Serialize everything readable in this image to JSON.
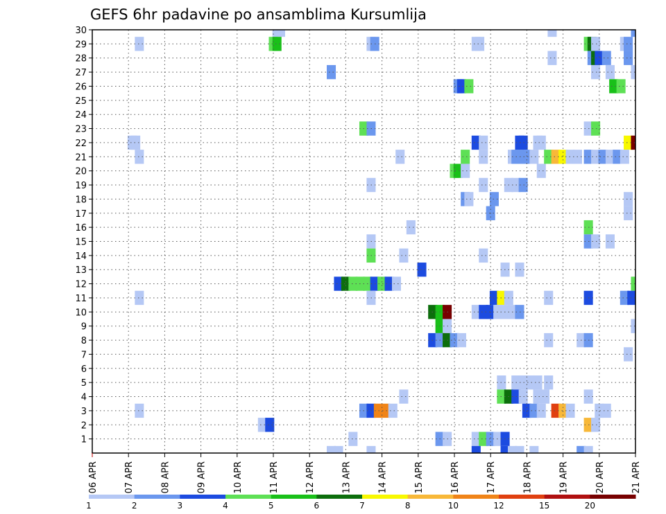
{
  "chart_data": {
    "type": "heatmap",
    "title": "GEFS 6hr padavine po ansamblima Kursumlija",
    "xlabel": "",
    "ylabel": "",
    "x_tick_labels": [
      "06 APR",
      "07 APR",
      "08 APR",
      "09 APR",
      "10 APR",
      "11 APR",
      "12 APR",
      "13 APR",
      "14 APR",
      "15 APR",
      "16 APR",
      "17 APR",
      "18 APR",
      "19 APR",
      "20 APR",
      "21 APR"
    ],
    "x_range_days": [
      0,
      15
    ],
    "x_step": "6hr",
    "y_tick_labels": [
      "1",
      "2",
      "3",
      "4",
      "5",
      "6",
      "7",
      "8",
      "9",
      "10",
      "11",
      "12",
      "13",
      "14",
      "15",
      "16",
      "17",
      "18",
      "19",
      "20",
      "21",
      "22",
      "23",
      "24",
      "25",
      "26",
      "27",
      "28",
      "29",
      "30"
    ],
    "y_range": [
      0,
      30
    ],
    "grid": true,
    "legend_position": "bottom",
    "color_scale": {
      "labels": [
        "1",
        "2",
        "3",
        "4",
        "5",
        "6",
        "7",
        "8",
        "10",
        "12",
        "15",
        "20"
      ],
      "colors": [
        "#b5c8f5",
        "#6b97ee",
        "#1c4be0",
        "#5ee055",
        "#19c019",
        "#0c6e0c",
        "#f8f800",
        "#f8b838",
        "#f08418",
        "#e04010",
        "#b01010",
        "#780000"
      ]
    },
    "cells": [
      {
        "member": 30,
        "t": [
          [
            5.1,
            "#b5c8f5"
          ],
          [
            5.2,
            "#b5c8f5"
          ],
          [
            12.7,
            "#b5c8f5"
          ],
          [
            15,
            "#6b97ee"
          ]
        ]
      },
      {
        "member": 29,
        "t": [
          [
            1.3,
            "#b5c8f5"
          ],
          [
            5,
            "#5ee055"
          ],
          [
            5.1,
            "#19c019"
          ],
          [
            7.7,
            "#b5c8f5"
          ],
          [
            7.8,
            "#6b97ee"
          ],
          [
            10.6,
            "#b5c8f5"
          ],
          [
            10.7,
            "#b5c8f5"
          ],
          [
            13.7,
            "#5ee055"
          ],
          [
            13.8,
            "#0c6e0c"
          ],
          [
            13.9,
            "#b5c8f5"
          ],
          [
            14.7,
            "#b5c8f5"
          ],
          [
            14.8,
            "#6b97ee"
          ]
        ]
      },
      {
        "member": 28,
        "t": [
          [
            12.7,
            "#b5c8f5"
          ],
          [
            13.8,
            "#6b97ee"
          ],
          [
            13.9,
            "#0c6e0c"
          ],
          [
            14,
            "#1c4be0"
          ],
          [
            14.2,
            "#6b97ee"
          ],
          [
            14.8,
            "#6b97ee"
          ]
        ]
      },
      {
        "member": 27,
        "t": [
          [
            6.6,
            "#6b97ee"
          ],
          [
            13.9,
            "#b5c8f5"
          ],
          [
            14.3,
            "#b5c8f5"
          ],
          [
            15,
            "#b5c8f5"
          ]
        ]
      },
      {
        "member": 26,
        "t": [
          [
            10.1,
            "#6b97ee"
          ],
          [
            10.2,
            "#1c4be0"
          ],
          [
            10.4,
            "#5ee055"
          ],
          [
            14.4,
            "#19c019"
          ],
          [
            14.6,
            "#5ee055"
          ]
        ]
      },
      {
        "member": 23,
        "t": [
          [
            7.5,
            "#5ee055"
          ],
          [
            7.7,
            "#6b97ee"
          ],
          [
            13.7,
            "#b5c8f5"
          ],
          [
            13.9,
            "#5ee055"
          ]
        ]
      },
      {
        "member": 22,
        "t": [
          [
            1.1,
            "#b5c8f5"
          ],
          [
            1.2,
            "#b5c8f5"
          ],
          [
            10.6,
            "#1c4be0"
          ],
          [
            10.8,
            "#b5c8f5"
          ],
          [
            11.8,
            "#1c4be0"
          ],
          [
            11.9,
            "#1c4be0"
          ],
          [
            12.3,
            "#b5c8f5"
          ],
          [
            12.4,
            "#b5c8f5"
          ],
          [
            14.8,
            "#f8f800"
          ],
          [
            15,
            "#780000"
          ]
        ]
      },
      {
        "member": 21,
        "t": [
          [
            1.3,
            "#b5c8f5"
          ],
          [
            8.5,
            "#b5c8f5"
          ],
          [
            10.3,
            "#5ee055"
          ],
          [
            10.8,
            "#b5c8f5"
          ],
          [
            11.6,
            "#b5c8f5"
          ],
          [
            11.7,
            "#6b97ee"
          ],
          [
            11.8,
            "#6b97ee"
          ],
          [
            12.0,
            "#6b97ee"
          ],
          [
            12.2,
            "#b5c8f5"
          ],
          [
            12.6,
            "#5ee055"
          ],
          [
            12.8,
            "#f8b838"
          ],
          [
            13.0,
            "#f8f800"
          ],
          [
            13.2,
            "#b5c8f5"
          ],
          [
            13.4,
            "#b5c8f5"
          ],
          [
            13.7,
            "#6b97ee"
          ],
          [
            13.9,
            "#b5c8f5"
          ],
          [
            14.1,
            "#6b97ee"
          ],
          [
            14.3,
            "#b5c8f5"
          ],
          [
            14.5,
            "#6b97ee"
          ],
          [
            14.7,
            "#b5c8f5"
          ]
        ]
      },
      {
        "member": 20,
        "t": [
          [
            10,
            "#5ee055"
          ],
          [
            10.1,
            "#19c019"
          ],
          [
            10.3,
            "#b5c8f5"
          ],
          [
            12.4,
            "#b5c8f5"
          ]
        ]
      },
      {
        "member": 19,
        "t": [
          [
            7.7,
            "#b5c8f5"
          ],
          [
            10.8,
            "#b5c8f5"
          ],
          [
            11.5,
            "#b5c8f5"
          ],
          [
            11.7,
            "#b5c8f5"
          ],
          [
            11.9,
            "#6b97ee"
          ]
        ]
      },
      {
        "member": 18,
        "t": [
          [
            10.3,
            "#6b97ee"
          ],
          [
            10.4,
            "#b5c8f5"
          ],
          [
            11.1,
            "#6b97ee"
          ],
          [
            14.8,
            "#b5c8f5"
          ]
        ]
      },
      {
        "member": 17,
        "t": [
          [
            11.0,
            "#6b97ee"
          ],
          [
            14.8,
            "#b5c8f5"
          ]
        ]
      },
      {
        "member": 16,
        "t": [
          [
            8.8,
            "#b5c8f5"
          ],
          [
            13.7,
            "#5ee055"
          ]
        ]
      },
      {
        "member": 15,
        "t": [
          [
            7.7,
            "#b5c8f5"
          ],
          [
            13.7,
            "#6b97ee"
          ],
          [
            13.9,
            "#b5c8f5"
          ],
          [
            14.3,
            "#b5c8f5"
          ]
        ]
      },
      {
        "member": 14,
        "t": [
          [
            7.7,
            "#5ee055"
          ],
          [
            8.6,
            "#b5c8f5"
          ],
          [
            10.8,
            "#b5c8f5"
          ]
        ]
      },
      {
        "member": 13,
        "t": [
          [
            9.1,
            "#1c4be0"
          ],
          [
            11.4,
            "#b5c8f5"
          ],
          [
            11.8,
            "#b5c8f5"
          ]
        ]
      },
      {
        "member": 12,
        "t": [
          [
            6.8,
            "#1c4be0"
          ],
          [
            7.0,
            "#0c6e0c"
          ],
          [
            7.2,
            "#5ee055"
          ],
          [
            7.4,
            "#5ee055"
          ],
          [
            7.6,
            "#5ee055"
          ],
          [
            7.8,
            "#1c4be0"
          ],
          [
            8.0,
            "#5ee055"
          ],
          [
            8.2,
            "#1c4be0"
          ],
          [
            8.4,
            "#b5c8f5"
          ],
          [
            15,
            "#5ee055"
          ]
        ]
      },
      {
        "member": 11,
        "t": [
          [
            1.3,
            "#b5c8f5"
          ],
          [
            7.7,
            "#b5c8f5"
          ],
          [
            11.1,
            "#1c4be0"
          ],
          [
            11.3,
            "#f8f800"
          ],
          [
            11.5,
            "#b5c8f5"
          ],
          [
            12.6,
            "#b5c8f5"
          ],
          [
            13.7,
            "#1c4be0"
          ],
          [
            14.7,
            "#6b97ee"
          ],
          [
            14.9,
            "#1c4be0"
          ]
        ]
      },
      {
        "member": 10,
        "t": [
          [
            9.4,
            "#0c6e0c"
          ],
          [
            9.6,
            "#19c019"
          ],
          [
            9.8,
            "#780000"
          ],
          [
            10.6,
            "#b5c8f5"
          ],
          [
            10.8,
            "#1c4be0"
          ],
          [
            11.0,
            "#1c4be0"
          ],
          [
            11.2,
            "#b5c8f5"
          ],
          [
            11.4,
            "#b5c8f5"
          ],
          [
            11.6,
            "#b5c8f5"
          ],
          [
            11.8,
            "#6b97ee"
          ]
        ]
      },
      {
        "member": 9,
        "t": [
          [
            9.6,
            "#19c019"
          ],
          [
            9.8,
            "#b5c8f5"
          ],
          [
            15,
            "#b5c8f5"
          ]
        ]
      },
      {
        "member": 8,
        "t": [
          [
            9.4,
            "#1c4be0"
          ],
          [
            9.6,
            "#6b97ee"
          ],
          [
            9.8,
            "#0c6e0c"
          ],
          [
            10.0,
            "#6b97ee"
          ],
          [
            10.2,
            "#b5c8f5"
          ],
          [
            12.6,
            "#b5c8f5"
          ],
          [
            13.5,
            "#b5c8f5"
          ],
          [
            13.7,
            "#6b97ee"
          ]
        ]
      },
      {
        "member": 7,
        "t": [
          [
            14.8,
            "#b5c8f5"
          ]
        ]
      },
      {
        "member": 5,
        "t": [
          [
            11.3,
            "#b5c8f5"
          ],
          [
            11.7,
            "#b5c8f5"
          ],
          [
            11.9,
            "#b5c8f5"
          ],
          [
            12.1,
            "#b5c8f5"
          ],
          [
            12.3,
            "#b5c8f5"
          ],
          [
            12.6,
            "#b5c8f5"
          ]
        ]
      },
      {
        "member": 4,
        "t": [
          [
            8.6,
            "#b5c8f5"
          ],
          [
            11.3,
            "#5ee055"
          ],
          [
            11.5,
            "#0c6e0c"
          ],
          [
            11.7,
            "#1c4be0"
          ],
          [
            11.9,
            "#b5c8f5"
          ],
          [
            12.3,
            "#b5c8f5"
          ],
          [
            12.5,
            "#b5c8f5"
          ],
          [
            13.7,
            "#b5c8f5"
          ]
        ]
      },
      {
        "member": 3,
        "t": [
          [
            1.3,
            "#b5c8f5"
          ],
          [
            7.5,
            "#6b97ee"
          ],
          [
            7.7,
            "#1c4be0"
          ],
          [
            7.9,
            "#f08418"
          ],
          [
            8.1,
            "#f08418"
          ],
          [
            8.3,
            "#b5c8f5"
          ],
          [
            12.0,
            "#1c4be0"
          ],
          [
            12.2,
            "#6b97ee"
          ],
          [
            12.4,
            "#b5c8f5"
          ],
          [
            12.8,
            "#e04010"
          ],
          [
            13.0,
            "#f8b838"
          ],
          [
            13.2,
            "#b5c8f5"
          ],
          [
            14.0,
            "#b5c8f5"
          ],
          [
            14.2,
            "#b5c8f5"
          ]
        ]
      },
      {
        "member": 2,
        "t": [
          [
            4.7,
            "#b5c8f5"
          ],
          [
            4.9,
            "#1c4be0"
          ],
          [
            13.7,
            "#f8b838"
          ],
          [
            13.9,
            "#b5c8f5"
          ]
        ]
      },
      {
        "member": 1,
        "t": [
          [
            7.2,
            "#b5c8f5"
          ],
          [
            9.6,
            "#6b97ee"
          ],
          [
            9.8,
            "#b5c8f5"
          ],
          [
            10.6,
            "#b5c8f5"
          ],
          [
            10.8,
            "#5ee055"
          ],
          [
            11.0,
            "#6b97ee"
          ],
          [
            11.2,
            "#b5c8f5"
          ],
          [
            11.4,
            "#1c4be0"
          ]
        ]
      },
      {
        "member": 0,
        "t": [
          [
            6.6,
            "#b5c8f5"
          ],
          [
            6.8,
            "#b5c8f5"
          ],
          [
            7.7,
            "#b5c8f5"
          ],
          [
            10.6,
            "#1c4be0"
          ],
          [
            11.4,
            "#1c4be0"
          ],
          [
            11.6,
            "#b5c8f5"
          ],
          [
            11.8,
            "#b5c8f5"
          ],
          [
            12.2,
            "#b5c8f5"
          ],
          [
            13.5,
            "#6b97ee"
          ],
          [
            13.7,
            "#b5c8f5"
          ]
        ]
      }
    ]
  }
}
